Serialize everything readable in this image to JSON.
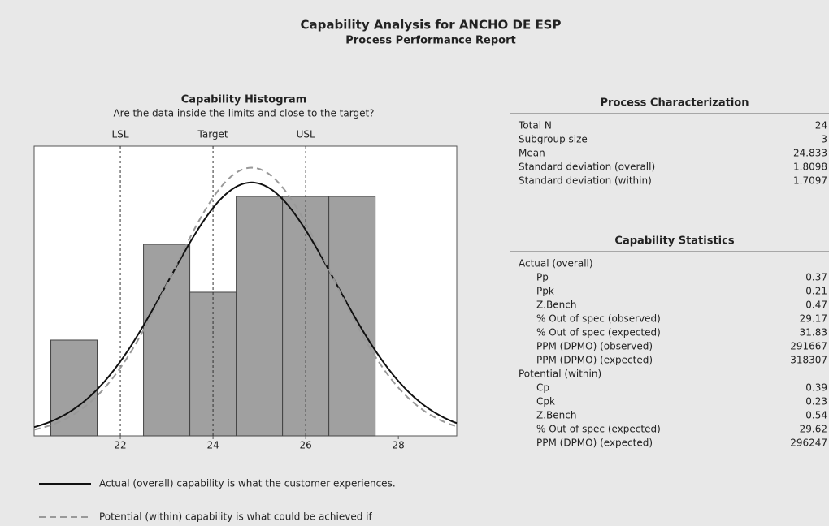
{
  "title": "Capability Analysis for ANCHO DE ESP",
  "subtitle": "Process Performance Report",
  "chart_data": {
    "type": "histogram",
    "title": "Capability Histogram",
    "subtitle": "Are the data inside the limits and close to the target?",
    "bins": [
      20.5,
      21.5,
      22.5,
      23.5,
      24.5,
      25.5,
      26.5,
      27.5
    ],
    "counts": [
      2,
      0,
      4,
      3,
      5,
      5,
      5
    ],
    "color": "#a0a0a0",
    "xlim": [
      20.14,
      29.26
    ],
    "ylim": [
      0,
      6.05
    ],
    "xticks": [
      22,
      24,
      26,
      28
    ],
    "spec_limits": [
      {
        "label": "LSL",
        "value": 22
      },
      {
        "label": "Target",
        "value": 24
      },
      {
        "label": "USL",
        "value": 26
      }
    ],
    "curves": [
      {
        "name": "Actual (overall) capability is what the customer experiences.",
        "style": "solid",
        "color": "#111111",
        "mean": 24.833,
        "sd": 1.8098
      },
      {
        "name": "Potential (within) capability is what could be achieved if",
        "style": "dashed",
        "color": "#999999",
        "mean": 24.833,
        "sd": 1.7097
      }
    ]
  },
  "process_characterization": {
    "title": "Process Characterization",
    "rows": [
      [
        "Total N",
        "24"
      ],
      [
        "Subgroup size",
        "3"
      ],
      [
        "Mean",
        "24.833"
      ],
      [
        "Standard deviation (overall)",
        "1.8098"
      ],
      [
        "Standard deviation (within)",
        "1.7097"
      ]
    ]
  },
  "capability_statistics": {
    "title": "Capability Statistics",
    "groups": [
      {
        "label": "Actual (overall)",
        "rows": [
          [
            "Pp",
            "0.37"
          ],
          [
            "Ppk",
            "0.21"
          ],
          [
            "Z.Bench",
            "0.47"
          ],
          [
            "% Out of spec (observed)",
            "29.17"
          ],
          [
            "% Out of spec (expected)",
            "31.83"
          ],
          [
            "PPM (DPMO) (observed)",
            "291667"
          ],
          [
            "PPM (DPMO) (expected)",
            "318307"
          ]
        ]
      },
      {
        "label": "Potential (within)",
        "rows": [
          [
            "Cp",
            "0.39"
          ],
          [
            "Cpk",
            "0.23"
          ],
          [
            "Z.Bench",
            "0.54"
          ],
          [
            "% Out of spec (expected)",
            "29.62"
          ],
          [
            "PPM (DPMO) (expected)",
            "296247"
          ]
        ]
      }
    ]
  }
}
